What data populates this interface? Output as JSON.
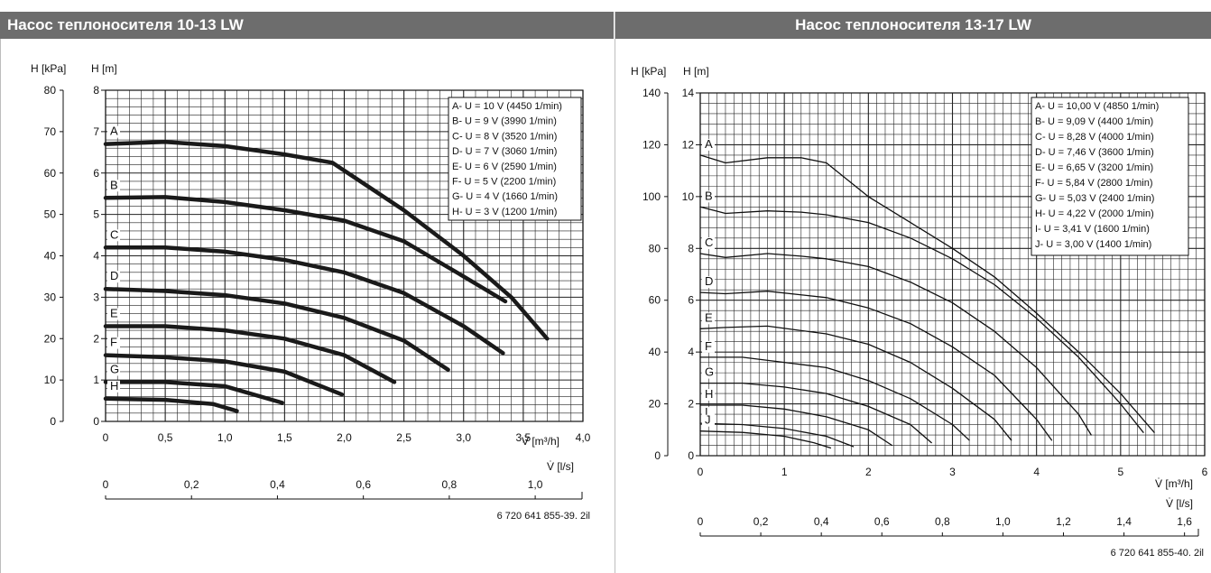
{
  "panels": [
    {
      "header": "Насос теплоносителя 10-13 LW",
      "figure_code": "6 720 641 855-39. 2il"
    },
    {
      "header": "Насос теплоносителя 13-17 LW",
      "figure_code": "6 720 641 855-40. 2il"
    }
  ],
  "chart_data": [
    {
      "type": "line",
      "xlabel": "V̇ [m³/h]",
      "ylabel_m": "H [m]",
      "ylabel_kpa": "H [kPa]",
      "xlabel_ls": "V̇ [l/s]",
      "xlim": [
        0,
        4.0
      ],
      "ylim_m": [
        0,
        8
      ],
      "ylim_kpa": [
        0,
        80
      ],
      "x_ticks": [
        "0",
        "0,5",
        "1,0",
        "1,5",
        "2,0",
        "2,5",
        "3,0",
        "3,5",
        "4,0"
      ],
      "y_ticks_m": [
        "0",
        "1",
        "2",
        "3",
        "4",
        "5",
        "6",
        "7",
        "8"
      ],
      "y_ticks_kpa": [
        "0",
        "10",
        "20",
        "30",
        "40",
        "50",
        "60",
        "70",
        "80"
      ],
      "ls_ticks": [
        "0",
        "0,2",
        "0,4",
        "0,6",
        "0,8",
        "1,0"
      ],
      "grid": true,
      "legend_position": "top-right",
      "legend": [
        "A-  U = 10 V (4450 1/min)",
        "B-  U = 9 V (3990 1/min)",
        "C-  U = 8 V (3520 1/min)",
        "D-  U = 7 V (3060 1/min)",
        "E-  U = 6 V (2590 1/min)",
        "F-  U = 5 V (2200 1/min)",
        "G-  U = 4 V (1660 1/min)",
        "H-  U = 3 V (1200 1/min)"
      ],
      "series": [
        {
          "name": "A",
          "x": [
            0,
            0.5,
            1.0,
            1.5,
            1.9,
            2.5,
            3.0,
            3.4,
            3.7
          ],
          "y": [
            6.7,
            6.75,
            6.65,
            6.45,
            6.25,
            5.1,
            4.0,
            3.0,
            2.0
          ]
        },
        {
          "name": "B",
          "x": [
            0,
            0.5,
            1.0,
            1.5,
            2.0,
            2.5,
            3.0,
            3.35
          ],
          "y": [
            5.4,
            5.42,
            5.3,
            5.1,
            4.85,
            4.35,
            3.5,
            2.9
          ]
        },
        {
          "name": "C",
          "x": [
            0,
            0.5,
            1.0,
            1.5,
            2.0,
            2.5,
            3.0,
            3.33
          ],
          "y": [
            4.2,
            4.2,
            4.1,
            3.9,
            3.6,
            3.1,
            2.3,
            1.65
          ]
        },
        {
          "name": "D",
          "x": [
            0,
            0.5,
            1.0,
            1.5,
            2.0,
            2.5,
            2.87
          ],
          "y": [
            3.2,
            3.15,
            3.05,
            2.85,
            2.5,
            1.95,
            1.25
          ]
        },
        {
          "name": "E",
          "x": [
            0,
            0.5,
            1.0,
            1.5,
            2.0,
            2.42
          ],
          "y": [
            2.3,
            2.3,
            2.2,
            2.0,
            1.6,
            0.95
          ]
        },
        {
          "name": "F",
          "x": [
            0,
            0.5,
            1.0,
            1.5,
            1.98
          ],
          "y": [
            1.6,
            1.55,
            1.45,
            1.2,
            0.65
          ]
        },
        {
          "name": "G",
          "x": [
            0,
            0.5,
            1.0,
            1.48
          ],
          "y": [
            0.95,
            0.95,
            0.85,
            0.45
          ]
        },
        {
          "name": "H",
          "x": [
            0,
            0.5,
            0.9,
            1.1
          ],
          "y": [
            0.55,
            0.52,
            0.42,
            0.25
          ]
        }
      ]
    },
    {
      "type": "line",
      "xlabel": "V̇ [m³/h]",
      "ylabel_m": "H [m]",
      "ylabel_kpa": "H [kPa]",
      "xlabel_ls": "V̇ [l/s]",
      "xlim": [
        0,
        6
      ],
      "ylim_m": [
        0,
        14
      ],
      "ylim_kpa": [
        0,
        140
      ],
      "x_ticks": [
        "0",
        "1",
        "2",
        "3",
        "4",
        "5",
        "6"
      ],
      "y_ticks_m": [
        "0",
        "2",
        "4",
        "6",
        "8",
        "10",
        "12",
        "14"
      ],
      "y_ticks_kpa": [
        "0",
        "20",
        "40",
        "60",
        "80",
        "100",
        "120",
        "140"
      ],
      "ls_ticks": [
        "0",
        "0,2",
        "0,4",
        "0,6",
        "0,8",
        "1,0",
        "1,2",
        "1,4",
        "1,6"
      ],
      "grid": true,
      "legend_position": "top-right",
      "legend": [
        "A-  U = 10,00 V (4850 1/min)",
        "B-  U = 9,09 V (4400 1/min)",
        "C-  U = 8,28 V (4000 1/min)",
        "D-  U = 7,46 V (3600 1/min)",
        "E-  U = 6,65 V (3200 1/min)",
        "F-  U = 5,84 V (2800 1/min)",
        "G-  U = 5,03 V (2400 1/min)",
        "H-  U = 4,22 V (2000 1/min)",
        "I-  U = 3,41 V (1600 1/min)",
        "J-  U = 3,00 V (1400 1/min)"
      ],
      "series": [
        {
          "name": "A",
          "x": [
            0,
            0.3,
            0.8,
            1.2,
            1.5,
            2.0,
            2.5,
            3.0,
            3.5,
            4.0,
            4.5,
            5.0,
            5.4
          ],
          "y": [
            11.6,
            11.3,
            11.5,
            11.5,
            11.3,
            10.0,
            9.0,
            8.0,
            6.9,
            5.5,
            4.0,
            2.4,
            0.9
          ]
        },
        {
          "name": "B",
          "x": [
            0,
            0.3,
            0.8,
            1.2,
            1.5,
            2.0,
            2.5,
            3.0,
            3.5,
            4.0,
            4.5,
            5.0,
            5.27
          ],
          "y": [
            9.6,
            9.35,
            9.45,
            9.4,
            9.3,
            9.0,
            8.4,
            7.6,
            6.6,
            5.3,
            3.8,
            2.0,
            0.9
          ]
        },
        {
          "name": "C",
          "x": [
            0,
            0.3,
            0.8,
            1.2,
            1.5,
            2.0,
            2.5,
            3.0,
            3.5,
            4.0,
            4.5,
            4.65
          ],
          "y": [
            7.8,
            7.65,
            7.8,
            7.7,
            7.6,
            7.3,
            6.7,
            5.9,
            4.8,
            3.4,
            1.6,
            0.8
          ]
        },
        {
          "name": "D",
          "x": [
            0,
            0.3,
            0.8,
            1.5,
            2.0,
            2.5,
            3.0,
            3.5,
            4.0,
            4.18
          ],
          "y": [
            6.3,
            6.25,
            6.35,
            6.1,
            5.7,
            5.1,
            4.2,
            3.1,
            1.4,
            0.6
          ]
        },
        {
          "name": "E",
          "x": [
            0,
            0.3,
            0.8,
            1.5,
            2.0,
            2.5,
            3.0,
            3.5,
            3.7
          ],
          "y": [
            4.9,
            4.95,
            5.0,
            4.7,
            4.3,
            3.6,
            2.6,
            1.4,
            0.6
          ]
        },
        {
          "name": "F",
          "x": [
            0,
            0.5,
            1.0,
            1.5,
            2.0,
            2.5,
            3.0,
            3.2
          ],
          "y": [
            3.8,
            3.8,
            3.6,
            3.4,
            2.9,
            2.2,
            1.2,
            0.6
          ]
        },
        {
          "name": "G",
          "x": [
            0,
            0.5,
            1.0,
            1.5,
            2.0,
            2.5,
            2.75
          ],
          "y": [
            2.8,
            2.8,
            2.65,
            2.4,
            1.9,
            1.2,
            0.5
          ]
        },
        {
          "name": "H",
          "x": [
            0,
            0.5,
            1.0,
            1.5,
            2.0,
            2.28
          ],
          "y": [
            1.95,
            1.95,
            1.8,
            1.5,
            1.0,
            0.4
          ]
        },
        {
          "name": "I",
          "x": [
            0,
            0.5,
            1.0,
            1.5,
            1.82
          ],
          "y": [
            1.25,
            1.2,
            1.05,
            0.75,
            0.35
          ]
        },
        {
          "name": "J",
          "x": [
            0,
            0.5,
            1.0,
            1.35,
            1.55
          ],
          "y": [
            0.95,
            0.9,
            0.75,
            0.5,
            0.3
          ]
        }
      ]
    }
  ]
}
